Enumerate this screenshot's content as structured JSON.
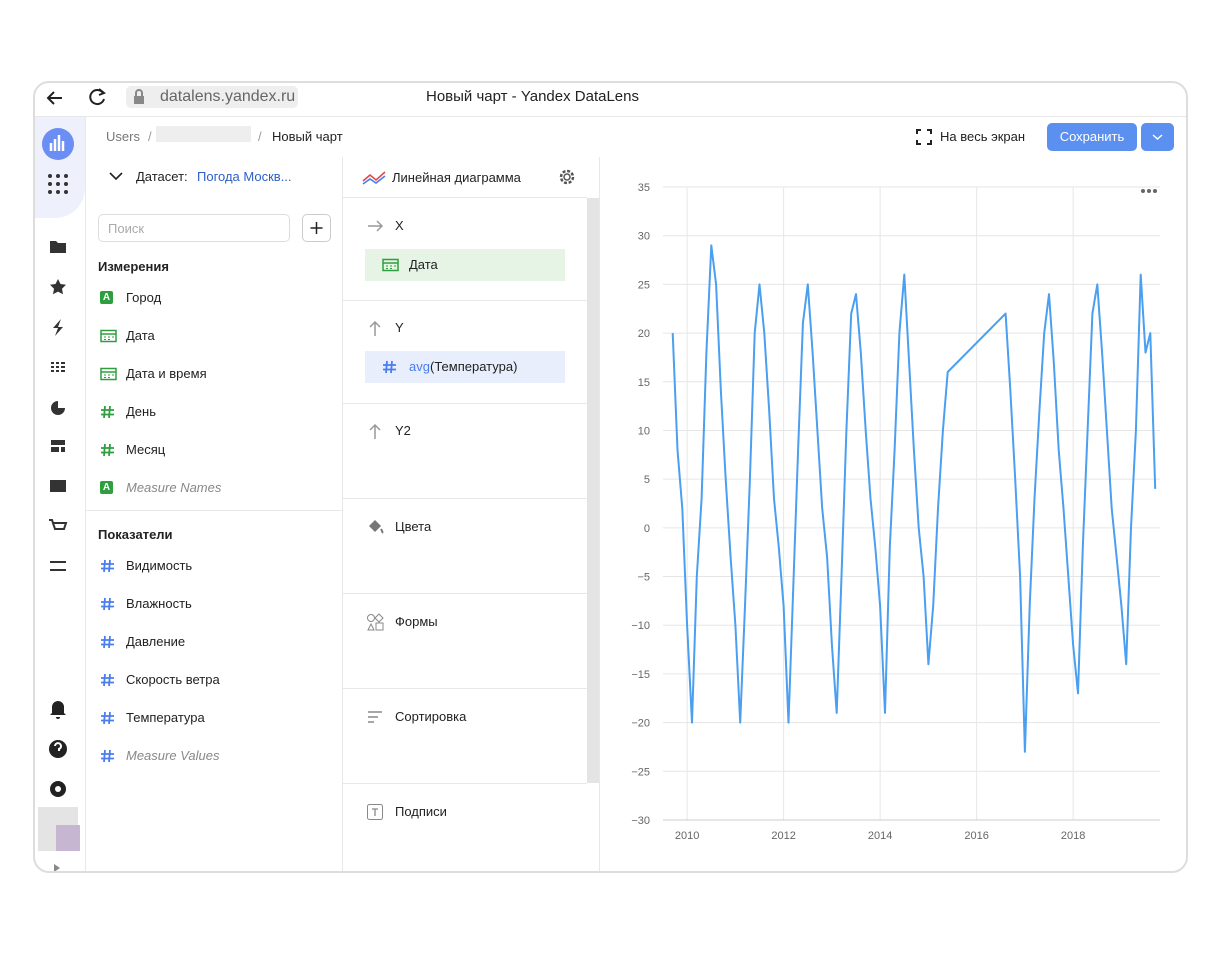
{
  "browser": {
    "url": "datalens.yandex.ru",
    "title": "Новый чарт - Yandex DataLens"
  },
  "breadcrumbs": [
    "Users",
    "Новый чарт"
  ],
  "toolbar": {
    "fullscreen": "На весь экран",
    "save": "Сохранить"
  },
  "dataset": {
    "label": "Датасет:",
    "name": "Погода Москв..."
  },
  "search_placeholder": "Поиск",
  "dimensions": {
    "title": "Измерения",
    "items": [
      {
        "icon": "A",
        "name": "Город"
      },
      {
        "icon": "date",
        "name": "Дата"
      },
      {
        "icon": "date",
        "name": "Дата и время"
      },
      {
        "icon": "number",
        "name": "День"
      },
      {
        "icon": "number",
        "name": "Месяц"
      },
      {
        "icon": "A",
        "name": "Measure Names",
        "virtual": true
      }
    ]
  },
  "measures": {
    "title": "Показатели",
    "items": [
      {
        "icon": "number",
        "name": "Видимость"
      },
      {
        "icon": "number",
        "name": "Влажность"
      },
      {
        "icon": "number",
        "name": "Давление"
      },
      {
        "icon": "number",
        "name": "Скорость ветра"
      },
      {
        "icon": "number",
        "name": "Температура"
      },
      {
        "icon": "number",
        "name": "Measure Values",
        "virtual": true
      }
    ]
  },
  "chart_type": "Линейная диаграмма",
  "sections": [
    {
      "label": "X",
      "icon": "arrow-right",
      "fields": [
        {
          "icon": "date",
          "role": "dimension",
          "name": "Дата"
        }
      ]
    },
    {
      "label": "Y",
      "icon": "arrow-up",
      "fields": [
        {
          "icon": "number",
          "role": "measure",
          "func": "avg",
          "name": "(Температура)"
        }
      ]
    },
    {
      "label": "Y2",
      "icon": "arrow-up"
    },
    {
      "label": "Цвета",
      "icon": "paint"
    },
    {
      "label": "Формы",
      "icon": "shapes"
    },
    {
      "label": "Сортировка",
      "icon": "sort"
    },
    {
      "label": "Подписи",
      "icon": "label"
    }
  ],
  "chart_data": {
    "type": "line",
    "x": [
      2009.7,
      2009.8,
      2009.9,
      2010.0,
      2010.1,
      2010.2,
      2010.3,
      2010.4,
      2010.5,
      2010.6,
      2010.7,
      2010.8,
      2010.9,
      2011.0,
      2011.1,
      2011.2,
      2011.3,
      2011.4,
      2011.5,
      2011.6,
      2011.7,
      2011.8,
      2011.9,
      2012.0,
      2012.1,
      2012.2,
      2012.3,
      2012.4,
      2012.5,
      2012.6,
      2012.7,
      2012.8,
      2012.9,
      2013.0,
      2013.1,
      2013.2,
      2013.3,
      2013.4,
      2013.5,
      2013.6,
      2013.7,
      2013.8,
      2013.9,
      2014.0,
      2014.1,
      2014.2,
      2014.3,
      2014.4,
      2014.5,
      2014.6,
      2014.7,
      2014.8,
      2014.9,
      2015.0,
      2015.1,
      2015.2,
      2015.3,
      2015.4,
      2016.6,
      2016.7,
      2016.8,
      2016.9,
      2017.0,
      2017.1,
      2017.2,
      2017.3,
      2017.4,
      2017.5,
      2017.6,
      2017.7,
      2017.8,
      2017.9,
      2018.0,
      2018.1,
      2018.2,
      2018.3,
      2018.4,
      2018.5,
      2018.6,
      2018.7,
      2018.8,
      2018.9,
      2019.0,
      2019.1,
      2019.2,
      2019.3,
      2019.4,
      2019.5,
      2019.6,
      2019.7
    ],
    "series": [
      {
        "color": "#4a9ff0",
        "values": [
          20,
          8,
          2,
          -10,
          -20,
          -5,
          3,
          18,
          29,
          25,
          14,
          5,
          -3,
          -10,
          -20,
          -8,
          5,
          20,
          25,
          20,
          12,
          3,
          -2,
          -8,
          -20,
          -6,
          8,
          21,
          25,
          18,
          10,
          2,
          -3,
          -12,
          -19,
          -5,
          10,
          22,
          24,
          18,
          10,
          3,
          -2,
          -8,
          -19,
          -2,
          8,
          20,
          26,
          17,
          8,
          0,
          -5,
          -14,
          -8,
          2,
          10,
          16,
          22,
          14,
          5,
          -5,
          -23,
          -8,
          3,
          12,
          20,
          24,
          17,
          8,
          2,
          -5,
          -12,
          -17,
          -2,
          10,
          22,
          25,
          18,
          10,
          2,
          -3,
          -8,
          -14,
          0,
          10,
          26,
          18,
          20,
          4
        ]
      }
    ],
    "xlim": [
      2009.5,
      2019.8
    ],
    "xticks": [
      2010,
      2012,
      2014,
      2016,
      2018
    ],
    "ylim": [
      -30,
      35
    ],
    "yticks": [
      {
        "value": -30,
        "label": "−30"
      },
      {
        "value": -25,
        "label": "−25"
      },
      {
        "value": -20,
        "label": "−20"
      },
      {
        "value": -15,
        "label": "−15"
      },
      {
        "value": -10,
        "label": "−10"
      },
      {
        "value": -5,
        "label": "−5"
      },
      0,
      5,
      10,
      15,
      20,
      25,
      30,
      35
    ],
    "grid": true
  }
}
